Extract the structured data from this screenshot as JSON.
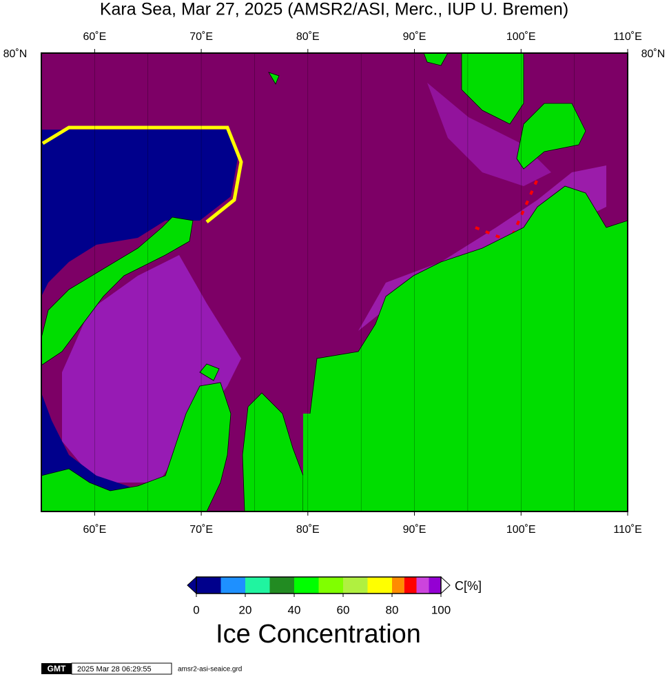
{
  "title": "Kara Sea, Mar 27, 2025 (AMSR2/ASI, Merc., IUP U. Bremen)",
  "map": {
    "lonlim": [
      55,
      110
    ],
    "lon_labels": [
      {
        "value": 60,
        "label": "60˚E"
      },
      {
        "value": 70,
        "label": "70˚E"
      },
      {
        "value": 80,
        "label": "80˚E"
      },
      {
        "value": 90,
        "label": "90˚E"
      },
      {
        "value": 100,
        "label": "100˚E"
      },
      {
        "value": 110,
        "label": "110˚E"
      }
    ],
    "meridians": [
      60,
      65,
      70,
      75,
      80,
      85,
      90,
      95,
      100,
      105
    ],
    "lat_label": "80˚N"
  },
  "colorbar": {
    "range": [
      0,
      100
    ],
    "ticks": [
      0,
      20,
      40,
      60,
      80,
      100
    ],
    "bounds": [
      0,
      10,
      20,
      30,
      40,
      50,
      60,
      70,
      80,
      85,
      90,
      95,
      100
    ],
    "colors": [
      "#00008c",
      "#1e90ff",
      "#20f4a0",
      "#228b22",
      "#00ff00",
      "#80ff00",
      "#b0f040",
      "#ffff00",
      "#ff8c00",
      "#ff0000",
      "#cc44dd",
      "#9400d3"
    ],
    "unit": "C[%]",
    "label": "Ice Concentration"
  },
  "footer": {
    "logo": "GMT",
    "timestamp": "2025 Mar 28 06:29:55",
    "file": "amsr2-asi-seaice.grd"
  }
}
